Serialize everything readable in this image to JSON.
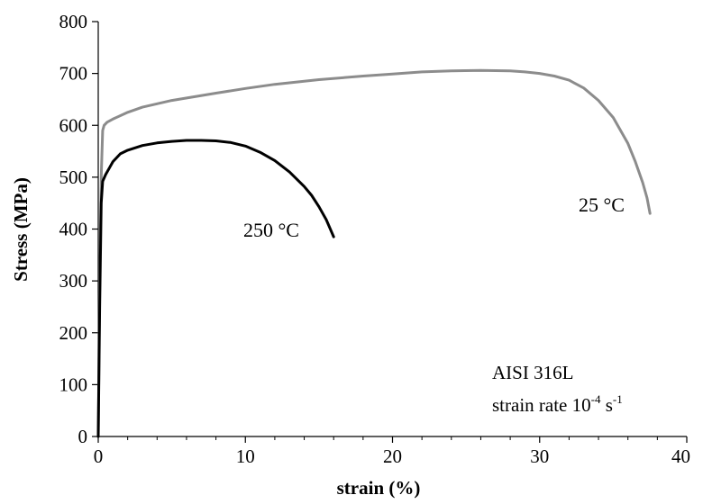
{
  "chart_data": {
    "type": "line",
    "xlabel": "strain (%)",
    "ylabel": "Stress (MPa)",
    "xlim": [
      0,
      40
    ],
    "ylim": [
      0,
      800
    ],
    "xticks": [
      0,
      10,
      20,
      30,
      40
    ],
    "xtick_labels": [
      "0",
      "10",
      "20",
      "30",
      "40"
    ],
    "yticks": [
      0,
      100,
      200,
      300,
      400,
      500,
      600,
      700,
      800
    ],
    "ytick_labels": [
      "0",
      "100",
      "200",
      "300",
      "400",
      "500",
      "600",
      "700",
      "800"
    ],
    "grid": false,
    "legend": "none",
    "annotations": {
      "material": "AISI 316L",
      "rate_prefix": "strain rate 10",
      "rate_exp": "-4",
      "rate_mid": " s",
      "rate_exp2": "-1"
    },
    "series": [
      {
        "name": "25 °C",
        "color": "#8c8c8c",
        "x": [
          0,
          0.1,
          0.2,
          0.3,
          0.4,
          0.6,
          1,
          2,
          3,
          5,
          8,
          10,
          12,
          15,
          18,
          20,
          22,
          24,
          26,
          28,
          29,
          30,
          31,
          32,
          33,
          34,
          35,
          36,
          36.5,
          37,
          37.3,
          37.5
        ],
        "y": [
          0,
          300,
          500,
          590,
          600,
          606,
          612,
          625,
          635,
          648,
          662,
          671,
          679,
          688,
          695,
          699,
          703,
          705,
          706,
          705,
          703,
          700,
          695,
          687,
          672,
          648,
          615,
          565,
          530,
          490,
          460,
          430
        ]
      },
      {
        "name": "250 °C",
        "color": "#000000",
        "x": [
          0,
          0.1,
          0.2,
          0.3,
          0.5,
          0.8,
          1,
          1.5,
          2,
          3,
          4,
          5,
          6,
          7,
          8,
          9,
          10,
          11,
          12,
          13,
          14,
          14.5,
          15,
          15.5,
          16
        ],
        "y": [
          0,
          250,
          450,
          492,
          505,
          520,
          530,
          545,
          552,
          561,
          566,
          569,
          571,
          571,
          570,
          567,
          560,
          548,
          532,
          510,
          482,
          465,
          443,
          418,
          385
        ]
      }
    ]
  }
}
